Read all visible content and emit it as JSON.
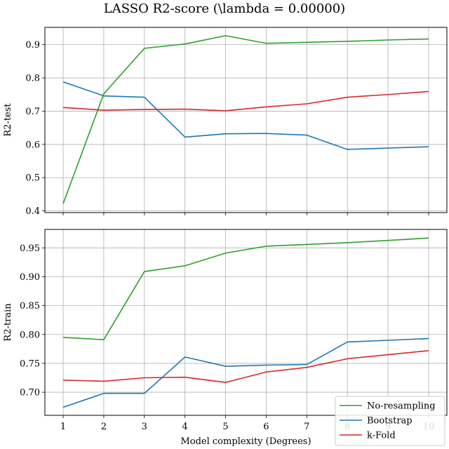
{
  "figure": {
    "title": "LASSO R2-score (\\lambda = 0.00000)"
  },
  "colors": {
    "No-resampling": "#2ca02c",
    "Bootstrap": "#1f77b4",
    "k-Fold": "#d62728",
    "grid": "#b0b0b0",
    "axes": "#000000"
  },
  "legend": {
    "placement": "lower right",
    "items": [
      "No-resampling",
      "Bootstrap",
      "k-Fold"
    ]
  },
  "chart_data": [
    {
      "type": "line",
      "title": "",
      "xlabel": "",
      "ylabel": "R2-test",
      "x": [
        1,
        2,
        3,
        4,
        5,
        6,
        7,
        8,
        9,
        10
      ],
      "xlim": [
        0.55,
        10.45
      ],
      "ylim": [
        0.395,
        0.952
      ],
      "yticks": [
        0.4,
        0.5,
        0.6,
        0.7,
        0.8,
        0.9
      ],
      "ytick_labels": [
        "0.4",
        "0.5",
        "0.6",
        "0.7",
        "0.8",
        "0.9"
      ],
      "grid": true,
      "series": [
        {
          "name": "No-resampling",
          "values": [
            0.422,
            0.752,
            0.889,
            0.902,
            0.927,
            0.904,
            0.907,
            0.91,
            0.914,
            0.917
          ]
        },
        {
          "name": "Bootstrap",
          "values": [
            0.788,
            0.746,
            0.742,
            0.622,
            0.632,
            0.633,
            0.628,
            0.585,
            0.589,
            0.593
          ]
        },
        {
          "name": "k-Fold",
          "values": [
            0.711,
            0.703,
            0.705,
            0.706,
            0.701,
            0.713,
            0.722,
            0.742,
            0.75,
            0.759
          ]
        }
      ]
    },
    {
      "type": "line",
      "title": "",
      "xlabel": "Model complexity (Degrees)",
      "ylabel": "R2-train",
      "x": [
        1,
        2,
        3,
        4,
        5,
        6,
        7,
        8,
        9,
        10
      ],
      "xlim": [
        0.55,
        10.45
      ],
      "ylim": [
        0.66,
        0.982
      ],
      "xticks": [
        1,
        2,
        3,
        4,
        5,
        6,
        7,
        8,
        9,
        10
      ],
      "xtick_labels": [
        "1",
        "2",
        "3",
        "4",
        "5",
        "6",
        "7",
        "8",
        "9",
        "10"
      ],
      "yticks": [
        0.7,
        0.75,
        0.8,
        0.85,
        0.9,
        0.95
      ],
      "ytick_labels": [
        "0.70",
        "0.75",
        "0.80",
        "0.85",
        "0.90",
        "0.95"
      ],
      "grid": true,
      "series": [
        {
          "name": "No-resampling",
          "values": [
            0.795,
            0.791,
            0.909,
            0.919,
            0.941,
            0.953,
            0.956,
            0.959,
            0.963,
            0.967
          ]
        },
        {
          "name": "Bootstrap",
          "values": [
            0.674,
            0.698,
            0.698,
            0.761,
            0.745,
            0.747,
            0.748,
            0.787,
            0.79,
            0.793
          ]
        },
        {
          "name": "k-Fold",
          "values": [
            0.721,
            0.719,
            0.725,
            0.726,
            0.717,
            0.735,
            0.743,
            0.758,
            0.765,
            0.772
          ]
        }
      ]
    }
  ]
}
